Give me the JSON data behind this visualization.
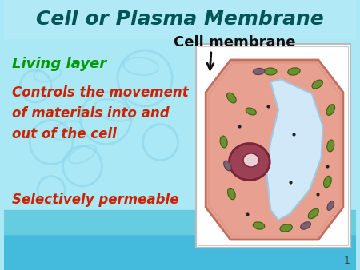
{
  "title": "Cell or Plasma Membrane",
  "title_color": "#005555",
  "title_fontsize": 18,
  "subtitle": "Cell membrane",
  "subtitle_color": "#111111",
  "subtitle_fontsize": 13,
  "label1": "Living layer",
  "label1_color": "#009900",
  "label1_fontsize": 13,
  "label2": "Controls the movement\nof materials into and\nout of the cell",
  "label2_color": "#cc2200",
  "label2_fontsize": 12,
  "label3": "Selectively permeable",
  "label3_color": "#cc2200",
  "label3_fontsize": 12,
  "slide_number": "1",
  "bg_light_color": "#aae8f5",
  "bg_dark_color": "#44bbdd",
  "cell_box_color": "#ffffff",
  "cell_outer_color": "#e8a090",
  "cell_outer_edge": "#c07060",
  "cell_inner_color": "#d0e8f8",
  "nucleus_fill": "#9b4055",
  "nucleus_edge": "#7a2535",
  "nucleolus_fill": "#e8d0d5",
  "organelle_fill": "#6a9030",
  "organelle_edge": "#3a6010",
  "organelle_dark_fill": "#806070",
  "organelle_dark_edge": "#504050",
  "dot_color": "#222222",
  "watermark_color": "#90d8ec",
  "arrow_color": "#111111"
}
